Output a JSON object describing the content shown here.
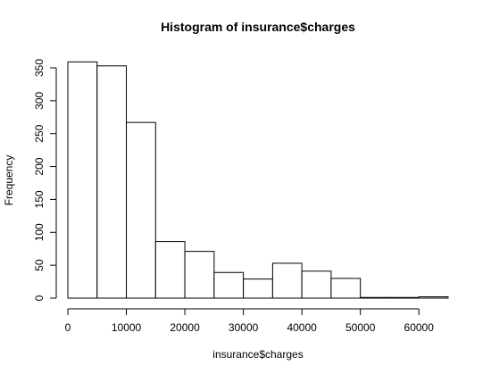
{
  "chart_data": {
    "type": "bar",
    "title": "Histogram of insurance$charges",
    "xlabel": "insurance$charges",
    "ylabel": "Frequency",
    "bin_edges": [
      0,
      5000,
      10000,
      15000,
      20000,
      25000,
      30000,
      35000,
      40000,
      45000,
      50000,
      55000,
      60000,
      65000
    ],
    "values": [
      359,
      353,
      267,
      86,
      71,
      39,
      29,
      53,
      41,
      30,
      1,
      1,
      2
    ],
    "xlim": [
      0,
      65000
    ],
    "ylim": [
      0,
      360
    ],
    "x_ticks": [
      0,
      10000,
      20000,
      30000,
      40000,
      50000,
      60000
    ],
    "y_ticks": [
      0,
      50,
      100,
      150,
      200,
      250,
      300,
      350
    ],
    "grid": false,
    "colors": {
      "bar_fill": "#ffffff",
      "bar_stroke": "#000000",
      "axis": "#000000"
    }
  }
}
